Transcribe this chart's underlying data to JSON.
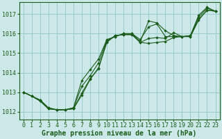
{
  "background_color": "#cce8e8",
  "plot_bg_color": "#cce8e8",
  "grid_color": "#99cccc",
  "line_color": "#1a5c1a",
  "marker_color": "#1a5c1a",
  "title": "Graphe pression niveau de la mer (hPa)",
  "title_fontsize": 7.0,
  "tick_fontsize": 6.0,
  "xlim": [
    -0.5,
    23.5
  ],
  "ylim": [
    1011.6,
    1017.6
  ],
  "yticks": [
    1012,
    1013,
    1014,
    1015,
    1016,
    1017
  ],
  "xticks": [
    0,
    1,
    2,
    3,
    4,
    5,
    6,
    7,
    8,
    9,
    10,
    11,
    12,
    13,
    14,
    15,
    16,
    17,
    18,
    19,
    20,
    21,
    22,
    23
  ],
  "series": [
    [
      1013.0,
      1012.8,
      1012.6,
      1012.2,
      1012.1,
      1012.1,
      1012.2,
      1013.3,
      1013.85,
      1014.5,
      1015.65,
      1015.85,
      1016.0,
      1016.0,
      1015.7,
      1016.35,
      1016.5,
      1015.85,
      1015.85,
      1015.85,
      1015.9,
      1016.85,
      1017.3,
      1017.15
    ],
    [
      1013.0,
      1012.8,
      1012.6,
      1012.2,
      1012.1,
      1012.1,
      1012.2,
      1013.6,
      1014.15,
      1014.7,
      1015.7,
      1015.85,
      1016.0,
      1016.0,
      1015.6,
      1016.65,
      1016.55,
      1016.15,
      1015.9,
      1015.85,
      1015.9,
      1016.95,
      1017.35,
      1017.15
    ],
    [
      1013.0,
      1012.8,
      1012.55,
      1012.15,
      1012.1,
      1012.1,
      1012.15,
      1012.85,
      1013.65,
      1014.25,
      1015.55,
      1015.9,
      1015.95,
      1015.95,
      1015.55,
      1015.75,
      1015.8,
      1015.75,
      1016.05,
      1015.85,
      1015.85,
      1016.75,
      1017.2,
      1017.15
    ],
    [
      1013.0,
      1012.8,
      1012.55,
      1012.15,
      1012.1,
      1012.1,
      1012.15,
      1012.95,
      1013.7,
      1014.2,
      1015.6,
      1015.9,
      1015.95,
      1015.95,
      1015.55,
      1015.5,
      1015.55,
      1015.6,
      1015.8,
      1015.85,
      1015.85,
      1016.7,
      1017.2,
      1017.15
    ]
  ]
}
